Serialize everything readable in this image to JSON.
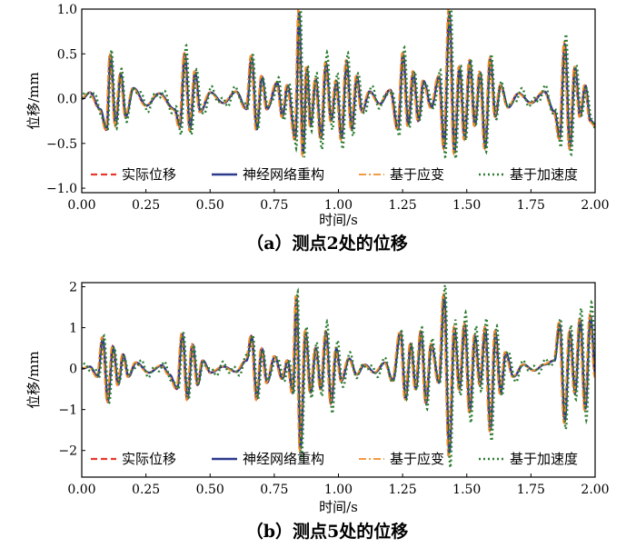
{
  "chart_data": [
    {
      "type": "line",
      "caption": "（a）测点2处的位移",
      "xlabel": "时间/s",
      "ylabel": "位移/mm",
      "xlim": [
        0,
        2
      ],
      "ylim": [
        -1.05,
        1.0
      ],
      "xticks": [
        "0.00",
        "0.25",
        "0.50",
        "0.75",
        "1.00",
        "1.25",
        "1.50",
        "1.75",
        "2.00"
      ],
      "yticks": [
        "-1.0",
        "-0.5",
        "0.0",
        "0.5",
        "1.0"
      ],
      "legend_position": "lower-center",
      "series": [
        {
          "name": "实际位移",
          "color": "#e8392f",
          "style": "dashed"
        },
        {
          "name": "神经网络重构",
          "color": "#2c3a8c",
          "style": "solid"
        },
        {
          "name": "基于应变",
          "color": "#f28c28",
          "style": "dashdot"
        },
        {
          "name": "基于加速度",
          "color": "#2e7d32",
          "style": "dotted"
        }
      ],
      "peaks": [
        [
          0.03,
          0.07
        ],
        [
          0.07,
          -0.12
        ],
        [
          0.095,
          -0.35
        ],
        [
          0.11,
          0.5
        ],
        [
          0.13,
          -0.3
        ],
        [
          0.15,
          0.28
        ],
        [
          0.17,
          -0.2
        ],
        [
          0.2,
          0.12
        ],
        [
          0.25,
          -0.08
        ],
        [
          0.3,
          0.06
        ],
        [
          0.36,
          -0.12
        ],
        [
          0.38,
          -0.32
        ],
        [
          0.4,
          0.5
        ],
        [
          0.42,
          -0.35
        ],
        [
          0.44,
          0.3
        ],
        [
          0.46,
          -0.15
        ],
        [
          0.5,
          0.07
        ],
        [
          0.55,
          -0.05
        ],
        [
          0.6,
          0.08
        ],
        [
          0.64,
          -0.12
        ],
        [
          0.66,
          0.47
        ],
        [
          0.68,
          -0.35
        ],
        [
          0.7,
          0.25
        ],
        [
          0.72,
          -0.12
        ],
        [
          0.76,
          0.18
        ],
        [
          0.78,
          -0.2
        ],
        [
          0.8,
          0.15
        ],
        [
          0.83,
          -0.45
        ],
        [
          0.845,
          0.98
        ],
        [
          0.86,
          -0.62
        ],
        [
          0.875,
          0.35
        ],
        [
          0.89,
          -0.3
        ],
        [
          0.91,
          0.22
        ],
        [
          0.93,
          -0.45
        ],
        [
          0.95,
          0.4
        ],
        [
          0.97,
          -0.25
        ],
        [
          0.99,
          0.2
        ],
        [
          1.01,
          -0.45
        ],
        [
          1.03,
          0.42
        ],
        [
          1.05,
          -0.35
        ],
        [
          1.07,
          0.25
        ],
        [
          1.09,
          -0.15
        ],
        [
          1.12,
          0.08
        ],
        [
          1.16,
          -0.06
        ],
        [
          1.2,
          0.1
        ],
        [
          1.23,
          -0.35
        ],
        [
          1.25,
          0.5
        ],
        [
          1.27,
          -0.3
        ],
        [
          1.29,
          0.3
        ],
        [
          1.31,
          -0.25
        ],
        [
          1.33,
          0.2
        ],
        [
          1.36,
          -0.1
        ],
        [
          1.39,
          0.25
        ],
        [
          1.41,
          -0.55
        ],
        [
          1.43,
          0.98
        ],
        [
          1.45,
          -0.6
        ],
        [
          1.47,
          0.35
        ],
        [
          1.49,
          -0.45
        ],
        [
          1.51,
          0.42
        ],
        [
          1.53,
          -0.3
        ],
        [
          1.55,
          0.3
        ],
        [
          1.57,
          -0.55
        ],
        [
          1.59,
          0.45
        ],
        [
          1.61,
          -0.2
        ],
        [
          1.63,
          0.15
        ],
        [
          1.66,
          -0.1
        ],
        [
          1.7,
          0.06
        ],
        [
          1.75,
          -0.05
        ],
        [
          1.8,
          0.08
        ],
        [
          1.84,
          -0.15
        ],
        [
          1.86,
          -0.45
        ],
        [
          1.88,
          0.62
        ],
        [
          1.9,
          -0.55
        ],
        [
          1.92,
          0.35
        ],
        [
          1.94,
          -0.2
        ],
        [
          1.96,
          0.15
        ],
        [
          1.98,
          -0.25
        ],
        [
          2.0,
          -0.3
        ]
      ]
    },
    {
      "type": "line",
      "caption": "（b）测点5处的位移",
      "xlabel": "时间/s",
      "ylabel": "位移/mm",
      "xlim": [
        0,
        2
      ],
      "ylim": [
        -2.65,
        2.1
      ],
      "xticks": [
        "0.00",
        "0.25",
        "0.50",
        "0.75",
        "1.00",
        "1.25",
        "1.50",
        "1.75",
        "2.00"
      ],
      "yticks": [
        "-2",
        "-1",
        "0",
        "1",
        "2"
      ],
      "legend_position": "lower-center",
      "series": [
        {
          "name": "实际位移",
          "color": "#e8392f",
          "style": "dashed"
        },
        {
          "name": "神经网络重构",
          "color": "#2c3a8c",
          "style": "solid"
        },
        {
          "name": "基于应变",
          "color": "#f28c28",
          "style": "dashdot"
        },
        {
          "name": "基于加速度",
          "color": "#2e7d32",
          "style": "dotted"
        }
      ],
      "peaks": [
        [
          0.03,
          0.05
        ],
        [
          0.06,
          -0.2
        ],
        [
          0.08,
          0.75
        ],
        [
          0.1,
          -0.8
        ],
        [
          0.12,
          0.55
        ],
        [
          0.14,
          -0.4
        ],
        [
          0.16,
          0.35
        ],
        [
          0.18,
          -0.2
        ],
        [
          0.21,
          0.15
        ],
        [
          0.26,
          -0.1
        ],
        [
          0.31,
          0.08
        ],
        [
          0.34,
          -0.15
        ],
        [
          0.37,
          -0.5
        ],
        [
          0.39,
          0.85
        ],
        [
          0.41,
          -0.75
        ],
        [
          0.43,
          0.6
        ],
        [
          0.45,
          -0.4
        ],
        [
          0.47,
          0.2
        ],
        [
          0.5,
          -0.1
        ],
        [
          0.55,
          0.05
        ],
        [
          0.6,
          -0.08
        ],
        [
          0.64,
          0.2
        ],
        [
          0.66,
          0.8
        ],
        [
          0.68,
          -0.75
        ],
        [
          0.7,
          0.5
        ],
        [
          0.72,
          -0.35
        ],
        [
          0.75,
          0.3
        ],
        [
          0.78,
          -0.25
        ],
        [
          0.8,
          0.2
        ],
        [
          0.82,
          -0.6
        ],
        [
          0.835,
          1.75
        ],
        [
          0.85,
          -2.0
        ],
        [
          0.87,
          0.9
        ],
        [
          0.89,
          -0.6
        ],
        [
          0.91,
          0.5
        ],
        [
          0.93,
          -0.5
        ],
        [
          0.95,
          0.9
        ],
        [
          0.97,
          -0.85
        ],
        [
          0.99,
          0.5
        ],
        [
          1.01,
          -0.3
        ],
        [
          1.04,
          0.25
        ],
        [
          1.07,
          -0.15
        ],
        [
          1.1,
          0.1
        ],
        [
          1.14,
          -0.1
        ],
        [
          1.18,
          0.15
        ],
        [
          1.21,
          -0.3
        ],
        [
          1.24,
          0.9
        ],
        [
          1.26,
          -0.75
        ],
        [
          1.28,
          0.6
        ],
        [
          1.3,
          -0.5
        ],
        [
          1.32,
          0.9
        ],
        [
          1.34,
          -0.85
        ],
        [
          1.36,
          0.6
        ],
        [
          1.39,
          -0.35
        ],
        [
          1.41,
          1.8
        ],
        [
          1.43,
          -2.1
        ],
        [
          1.45,
          1.0
        ],
        [
          1.47,
          -0.5
        ],
        [
          1.49,
          1.1
        ],
        [
          1.51,
          -1.05
        ],
        [
          1.53,
          0.8
        ],
        [
          1.55,
          -0.4
        ],
        [
          1.57,
          1.0
        ],
        [
          1.59,
          -1.5
        ],
        [
          1.61,
          0.9
        ],
        [
          1.63,
          -0.6
        ],
        [
          1.65,
          0.4
        ],
        [
          1.68,
          -0.2
        ],
        [
          1.72,
          0.1
        ],
        [
          1.76,
          -0.05
        ],
        [
          1.8,
          0.1
        ],
        [
          1.84,
          0.2
        ],
        [
          1.86,
          1.1
        ],
        [
          1.88,
          -1.3
        ],
        [
          1.9,
          0.9
        ],
        [
          1.92,
          -0.6
        ],
        [
          1.94,
          1.2
        ],
        [
          1.96,
          -1.0
        ],
        [
          1.98,
          1.3
        ],
        [
          2.0,
          -0.2
        ]
      ]
    }
  ]
}
